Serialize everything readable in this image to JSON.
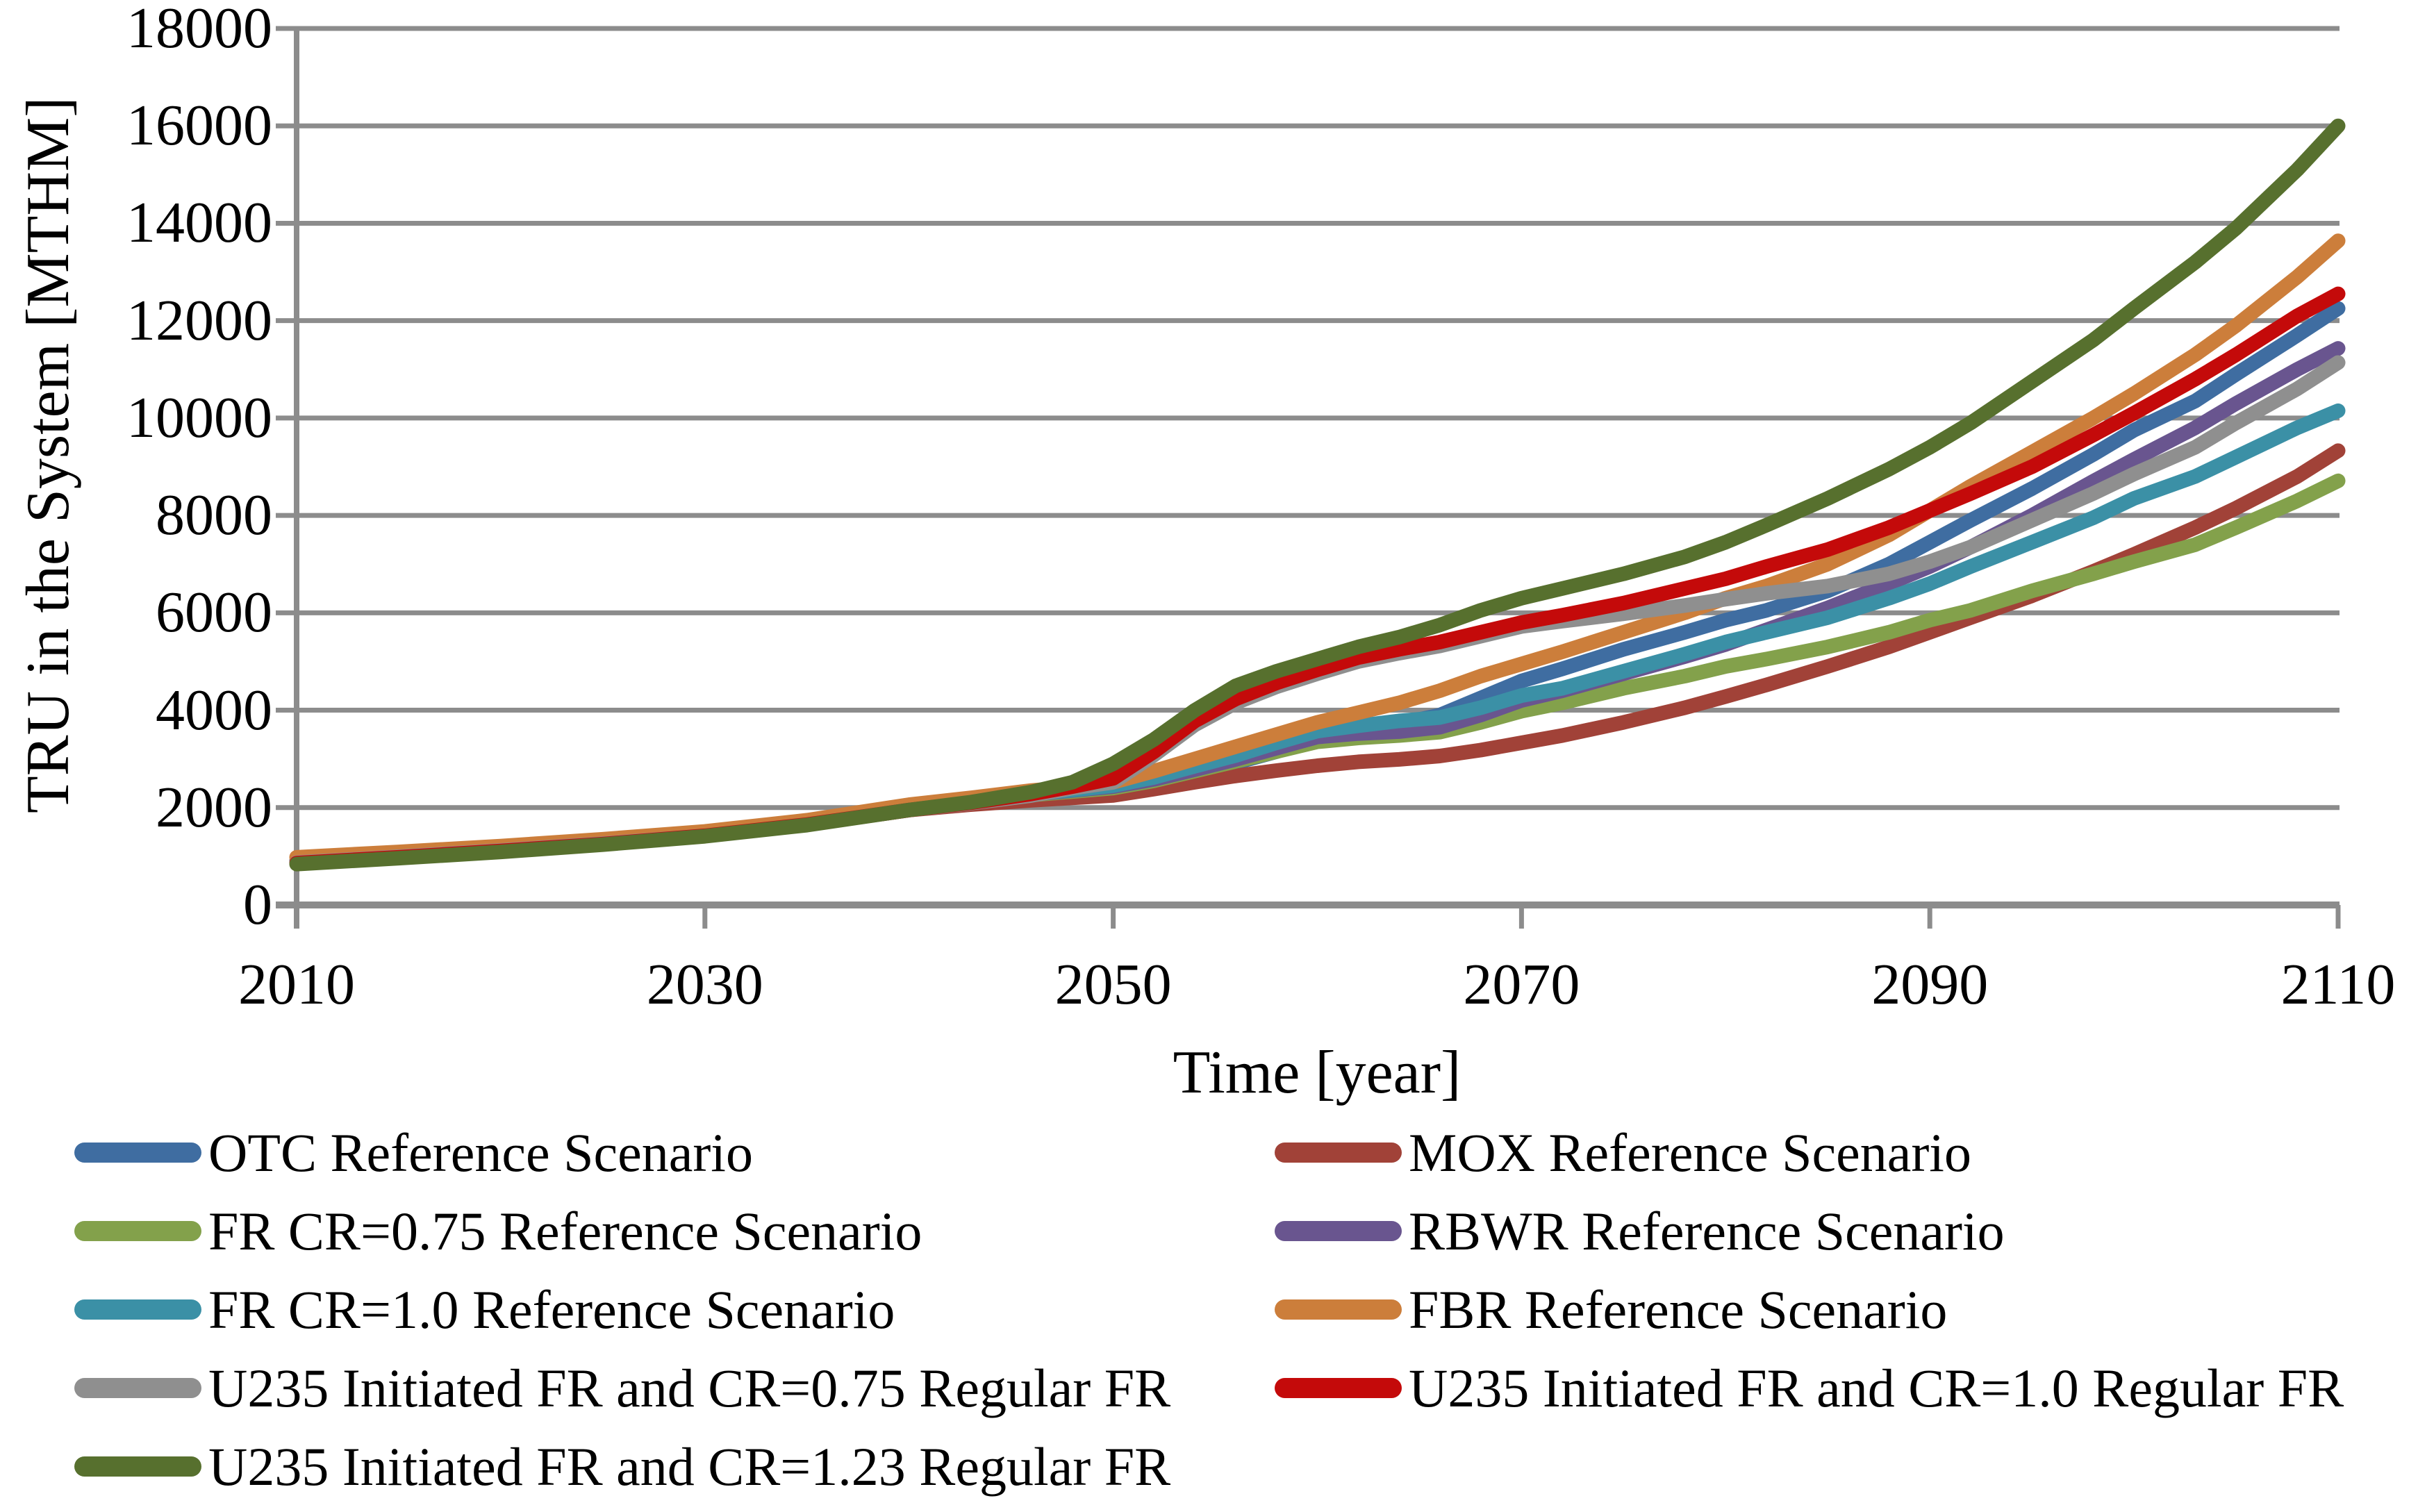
{
  "chart_data": {
    "type": "line",
    "title": "",
    "xlabel": "Time [year]",
    "ylabel": "TRU in the System [MTHM]",
    "xlim": [
      2010,
      2110
    ],
    "ylim": [
      0,
      18000
    ],
    "x_ticks": [
      2010,
      2030,
      2050,
      2070,
      2090,
      2110
    ],
    "y_ticks": [
      0,
      2000,
      4000,
      6000,
      8000,
      10000,
      12000,
      14000,
      16000,
      18000
    ],
    "grid": "horizontal-only",
    "legend_position": "bottom-two-columns",
    "x": [
      2010,
      2015,
      2020,
      2025,
      2030,
      2035,
      2040,
      2043,
      2046,
      2048,
      2050,
      2052,
      2054,
      2056,
      2058,
      2060,
      2062,
      2064,
      2066,
      2068,
      2070,
      2072,
      2075,
      2078,
      2080,
      2082,
      2085,
      2088,
      2090,
      2092,
      2095,
      2098,
      2100,
      2103,
      2105,
      2108,
      2110
    ],
    "series": [
      {
        "name": "OTC Reference Scenario",
        "color": "#3F6DA1",
        "values": [
          900,
          1020,
          1150,
          1290,
          1450,
          1680,
          1980,
          2120,
          2280,
          2370,
          2470,
          2600,
          2750,
          2920,
          3150,
          3420,
          3600,
          3720,
          3900,
          4250,
          4600,
          4850,
          5250,
          5600,
          5850,
          6050,
          6450,
          7000,
          7450,
          7900,
          8550,
          9250,
          9750,
          10350,
          10900,
          11700,
          12250
        ]
      },
      {
        "name": "MOX Reference Scenario",
        "color": "#A14238",
        "values": [
          900,
          1010,
          1140,
          1280,
          1430,
          1650,
          1950,
          2060,
          2150,
          2200,
          2250,
          2380,
          2520,
          2650,
          2760,
          2860,
          2940,
          2990,
          3060,
          3180,
          3330,
          3480,
          3750,
          4050,
          4280,
          4520,
          4900,
          5300,
          5600,
          5900,
          6350,
          6850,
          7200,
          7750,
          8150,
          8800,
          9330
        ]
      },
      {
        "name": "FR CR=0.75 Reference Scenario",
        "color": "#83A14B",
        "values": [
          880,
          1000,
          1130,
          1270,
          1430,
          1660,
          1960,
          2100,
          2260,
          2330,
          2400,
          2550,
          2750,
          2950,
          3150,
          3350,
          3430,
          3480,
          3550,
          3750,
          3980,
          4150,
          4450,
          4700,
          4900,
          5050,
          5300,
          5600,
          5850,
          6050,
          6450,
          6800,
          7050,
          7400,
          7750,
          8300,
          8710
        ]
      },
      {
        "name": "RBWR Reference Scenario",
        "color": "#69558F",
        "values": [
          900,
          1015,
          1145,
          1285,
          1440,
          1670,
          1970,
          2110,
          2270,
          2350,
          2430,
          2580,
          2780,
          2990,
          3220,
          3450,
          3520,
          3560,
          3650,
          3900,
          4200,
          4400,
          4750,
          5100,
          5350,
          5650,
          6100,
          6600,
          6950,
          7350,
          8000,
          8700,
          9150,
          9800,
          10300,
          11000,
          11430
        ]
      },
      {
        "name": "FR CR=1.0 Reference Scenario",
        "color": "#3B90A6",
        "values": [
          890,
          1010,
          1140,
          1280,
          1440,
          1670,
          1975,
          2115,
          2280,
          2360,
          2450,
          2620,
          2850,
          3070,
          3330,
          3570,
          3680,
          3780,
          3850,
          4050,
          4300,
          4450,
          4800,
          5150,
          5400,
          5600,
          5900,
          6300,
          6600,
          6950,
          7450,
          7950,
          8350,
          8800,
          9200,
          9800,
          10150
        ]
      },
      {
        "name": "FBR Reference Scenario",
        "color": "#CC7E3B",
        "values": [
          980,
          1090,
          1210,
          1350,
          1510,
          1740,
          2060,
          2200,
          2350,
          2420,
          2520,
          2750,
          3000,
          3250,
          3500,
          3750,
          3950,
          4150,
          4400,
          4700,
          4950,
          5200,
          5600,
          6000,
          6300,
          6550,
          7000,
          7600,
          8100,
          8600,
          9300,
          10000,
          10500,
          11300,
          11900,
          12900,
          13640
        ]
      },
      {
        "name": "U235 Initiated FR and CR=0.75 Regular FR",
        "color": "#8F8F8F",
        "values": [
          870,
          990,
          1120,
          1260,
          1420,
          1650,
          1950,
          2090,
          2250,
          2400,
          2520,
          3080,
          3700,
          4150,
          4480,
          4750,
          5000,
          5170,
          5320,
          5520,
          5720,
          5830,
          5980,
          6150,
          6280,
          6400,
          6550,
          6800,
          7050,
          7350,
          7900,
          8450,
          8850,
          9400,
          9900,
          10600,
          11140
        ]
      },
      {
        "name": "U235 Initiated FR and CR=1.0 Regular FR",
        "color": "#C40A0A",
        "values": [
          860,
          980,
          1110,
          1250,
          1420,
          1650,
          1950,
          2100,
          2280,
          2430,
          2600,
          3150,
          3780,
          4230,
          4560,
          4830,
          5080,
          5250,
          5400,
          5600,
          5800,
          5950,
          6200,
          6500,
          6700,
          6950,
          7300,
          7750,
          8100,
          8450,
          9000,
          9650,
          10100,
          10800,
          11300,
          12100,
          12550
        ]
      },
      {
        "name": "U235 Initiated FR and CR=1.23 Regular FR",
        "color": "#57702E",
        "values": [
          840,
          960,
          1090,
          1240,
          1410,
          1640,
          1950,
          2110,
          2320,
          2520,
          2900,
          3400,
          4000,
          4500,
          4800,
          5050,
          5300,
          5500,
          5750,
          6050,
          6300,
          6500,
          6800,
          7150,
          7450,
          7800,
          8350,
          8950,
          9400,
          9900,
          10750,
          11600,
          12250,
          13200,
          13900,
          15100,
          16000
        ]
      }
    ],
    "legend_columns": [
      {
        "series_indices": [
          0,
          2,
          4,
          6,
          8
        ]
      },
      {
        "series_indices": [
          1,
          3,
          5,
          7
        ]
      }
    ]
  },
  "style_colors": {
    "gridline": "#8C8C8C",
    "axis_line": "#8C8C8C",
    "text": "#000000",
    "background": "#FFFFFF"
  }
}
